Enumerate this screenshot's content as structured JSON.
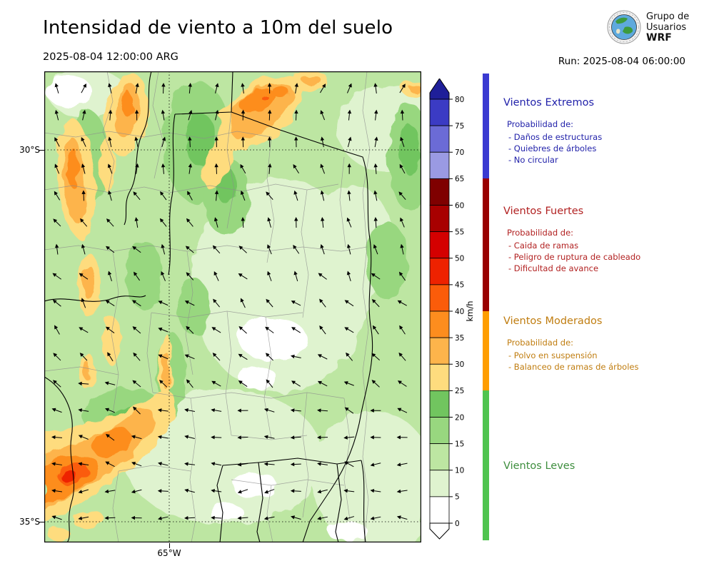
{
  "header": {
    "title": "Intensidad de viento a 10m del suelo",
    "valid_time": "2025-08-04 12:00:00 ARG",
    "run_label": "Run: 2025-08-04 06:00:00",
    "logo": {
      "line1": "Grupo de",
      "line2": "Usuarios",
      "line3": "WRF"
    }
  },
  "map": {
    "lat_labels": [
      "30°S",
      "35°S"
    ],
    "lon_labels": [
      "65°W"
    ]
  },
  "colorbar": {
    "unit": "km/h",
    "ticks_top_to_bottom": [
      "80",
      "75",
      "70",
      "65",
      "60",
      "55",
      "50",
      "45",
      "40",
      "35",
      "30",
      "25",
      "20",
      "15",
      "10",
      "5",
      "0"
    ],
    "over_color": "#1f1f99",
    "under_color": "#ffffff",
    "segment_colors_top_to_bottom": [
      "#3b3bc4",
      "#6b6bd6",
      "#9a9ae3",
      "#7f0000",
      "#a80000",
      "#d40000",
      "#ee2200",
      "#fb5c0a",
      "#fd8d1e",
      "#fdb44b",
      "#fedc7e",
      "#71c55f",
      "#98d77f",
      "#bde6a2",
      "#dff3cf",
      "#ffffff"
    ]
  },
  "legend": {
    "sections": [
      {
        "id": "extremos",
        "title": "Vientos Extremos",
        "text_color": "#2222aa",
        "strip_color": "#3a3ad1",
        "min_kmh": 65,
        "max_kmh": null,
        "intro": "Probabilidad de:",
        "items": [
          "- Daños de estructuras",
          "- Quiebres de árboles",
          "- No circular"
        ]
      },
      {
        "id": "fuertes",
        "title": "Vientos Fuertes",
        "text_color": "#b22222",
        "strip_color": "#990000",
        "min_kmh": 40,
        "max_kmh": 65,
        "intro": "Probabilidad de:",
        "items": [
          "- Caida de ramas",
          "- Peligro de ruptura de cableado",
          "- Dificultad de avance"
        ]
      },
      {
        "id": "moderados",
        "title": "Vientos Moderados",
        "text_color": "#c07d10",
        "strip_color": "#ff9d00",
        "min_kmh": 25,
        "max_kmh": 40,
        "intro": "Probabilidad de:",
        "items": [
          "- Polvo en suspensión",
          "- Balanceo de ramas de árboles"
        ]
      },
      {
        "id": "leves",
        "title": "Vientos Leves",
        "text_color": "#3e8e3e",
        "strip_color": "#4fc44f",
        "min_kmh": 0,
        "max_kmh": 25,
        "intro": "",
        "items": []
      }
    ]
  }
}
